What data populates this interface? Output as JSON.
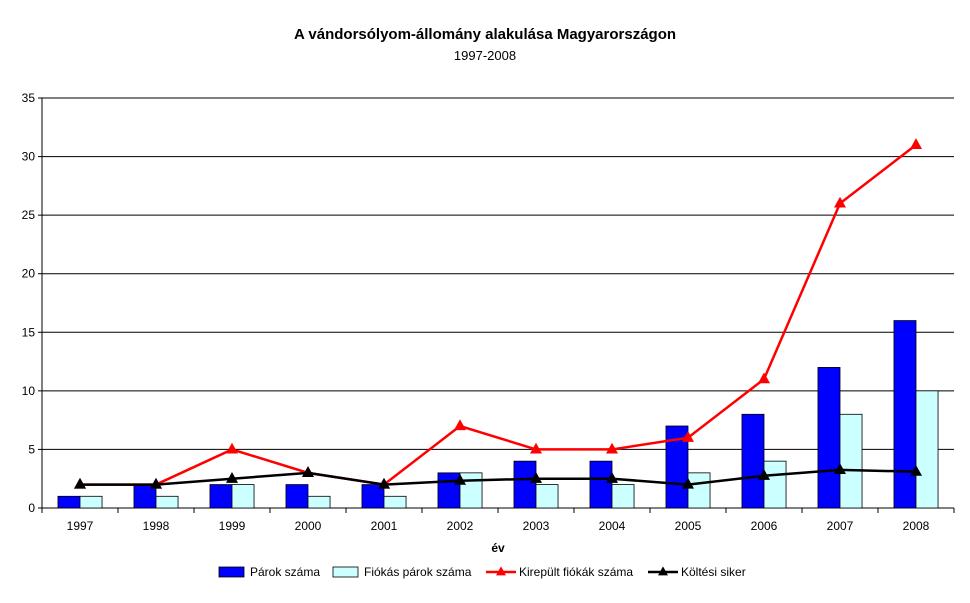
{
  "chart_data": {
    "type": "bar",
    "title": "A vándorsólyom-állomány alakulása Magyarországon",
    "subtitle": "1997-2008",
    "xlabel": "év",
    "ylabel": "",
    "ylim": [
      0,
      35
    ],
    "yticks": [
      0,
      5,
      10,
      15,
      20,
      25,
      30,
      35
    ],
    "grid": true,
    "legend_position": "bottom",
    "categories": [
      "1997",
      "1998",
      "1999",
      "2000",
      "2001",
      "2002",
      "2003",
      "2004",
      "2005",
      "2006",
      "2007",
      "2008"
    ],
    "series": [
      {
        "name": "Párok száma",
        "kind": "bar",
        "color": "#0000ff",
        "values": [
          1,
          2,
          2,
          2,
          2,
          3,
          4,
          4,
          7,
          8,
          12,
          16
        ]
      },
      {
        "name": "Fiókás párok száma",
        "kind": "bar",
        "color": "#ccffff",
        "values": [
          1,
          1,
          2,
          1,
          1,
          3,
          2,
          2,
          3,
          4,
          8,
          10
        ]
      },
      {
        "name": "Kirepült fiókák száma",
        "kind": "line",
        "color": "#ff0000",
        "marker": "triangle",
        "values": [
          2,
          2,
          5,
          3,
          2,
          7,
          5,
          5,
          6,
          11,
          26,
          31
        ]
      },
      {
        "name": "Költési siker",
        "kind": "line",
        "color": "#000000",
        "marker": "triangle",
        "values": [
          2,
          2,
          2.5,
          3,
          2,
          2.33,
          2.5,
          2.5,
          2,
          2.75,
          3.25,
          3.1
        ]
      }
    ]
  }
}
